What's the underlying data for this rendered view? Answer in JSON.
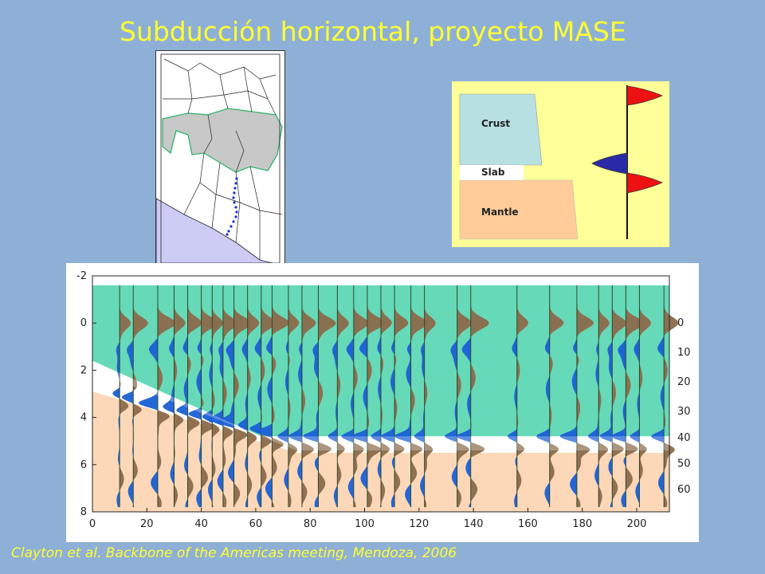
{
  "title": "Subducción horizontal, proyecto MASE",
  "caption": "Clayton et al. Backbone of the Americas meeting, Mendoza, 2006",
  "legend": {
    "crust": "Crust",
    "slab": "Slab",
    "mantle": "Mantle",
    "colors": {
      "crust": "#b7e0e3",
      "slab": "#ffffff",
      "mantle": "#ffcc99",
      "bg": "#ffff99",
      "pos": "#ee1111",
      "neg": "#2a2aa8"
    }
  },
  "section": {
    "x_ticks": [
      "0",
      "20",
      "40",
      "60",
      "80",
      "100",
      "120",
      "140",
      "160",
      "180",
      "200"
    ],
    "y_ticks": [
      "-2",
      "0",
      "2",
      "4",
      "6",
      "8"
    ],
    "depth_labels": [
      "0",
      "10",
      "20",
      "30",
      "40",
      "50",
      "60"
    ],
    "colors": {
      "crust": "#66d9b8",
      "mantle": "#fcd8b8",
      "pos": "#8b6a4a",
      "neg": "#1a5fd6"
    }
  }
}
